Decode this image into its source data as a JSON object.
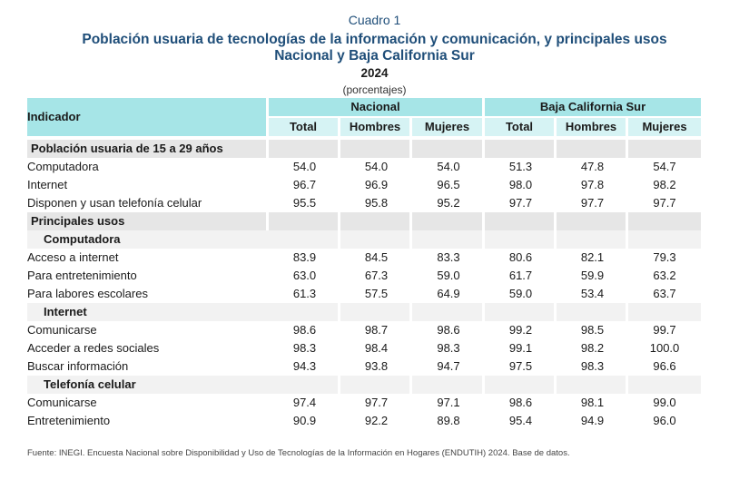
{
  "header": {
    "cuadro": "Cuadro 1",
    "title_line1": "Población usuaria de tecnologías de la información y comunicación, y principales usos",
    "title_line2": "Nacional y Baja California Sur",
    "year": "2024",
    "units": "(porcentajes)"
  },
  "table": {
    "indicator_header": "Indicador",
    "group_nacional": "Nacional",
    "group_bcs": "Baja California Sur",
    "col_total": "Total",
    "col_hombres": "Hombres",
    "col_mujeres": "Mujeres",
    "section1": "Población usuaria de 15 a 29 años",
    "rows1": [
      {
        "label": "Computadora",
        "values": [
          "54.0",
          "54.0",
          "54.0",
          "51.3",
          "47.8",
          "54.7"
        ]
      },
      {
        "label": "Internet",
        "values": [
          "96.7",
          "96.9",
          "96.5",
          "98.0",
          "97.8",
          "98.2"
        ]
      },
      {
        "label": "Disponen y usan telefonía celular",
        "values": [
          "95.5",
          "95.8",
          "95.2",
          "97.7",
          "97.7",
          "97.7"
        ]
      }
    ],
    "section2": "Principales usos",
    "sub_computadora": "Computadora",
    "rows_computadora": [
      {
        "label": "Acceso a internet",
        "values": [
          "83.9",
          "84.5",
          "83.3",
          "80.6",
          "82.1",
          "79.3"
        ]
      },
      {
        "label": "Para entretenimiento",
        "values": [
          "63.0",
          "67.3",
          "59.0",
          "61.7",
          "59.9",
          "63.2"
        ]
      },
      {
        "label": "Para labores escolares",
        "values": [
          "61.3",
          "57.5",
          "64.9",
          "59.0",
          "53.4",
          "63.7"
        ]
      }
    ],
    "sub_internet": "Internet",
    "rows_internet": [
      {
        "label": "Comunicarse",
        "values": [
          "98.6",
          "98.7",
          "98.6",
          "99.2",
          "98.5",
          "99.7"
        ]
      },
      {
        "label": "Acceder a redes sociales",
        "values": [
          "98.3",
          "98.4",
          "98.3",
          "99.1",
          "98.2",
          "100.0"
        ]
      },
      {
        "label": "Buscar información",
        "values": [
          "94.3",
          "93.8",
          "94.7",
          "97.5",
          "98.3",
          "96.6"
        ]
      }
    ],
    "sub_telefonia": "Telefonía celular",
    "rows_telefonia": [
      {
        "label": "Comunicarse",
        "values": [
          "97.4",
          "97.7",
          "97.1",
          "98.6",
          "98.1",
          "99.0"
        ]
      },
      {
        "label": "Entretenimiento",
        "values": [
          "90.9",
          "92.2",
          "89.8",
          "95.4",
          "94.9",
          "96.0"
        ]
      }
    ]
  },
  "source": "Fuente: INEGI. Encuesta Nacional sobre Disponibilidad y Uso de Tecnologías de la Información en Hogares (ENDUTIH) 2024. Base de datos.",
  "colors": {
    "title": "#1f4e79",
    "header_dark": "#a6e5e7",
    "header_light": "#d6f3f4",
    "section_gray": "#e6e6e6"
  }
}
